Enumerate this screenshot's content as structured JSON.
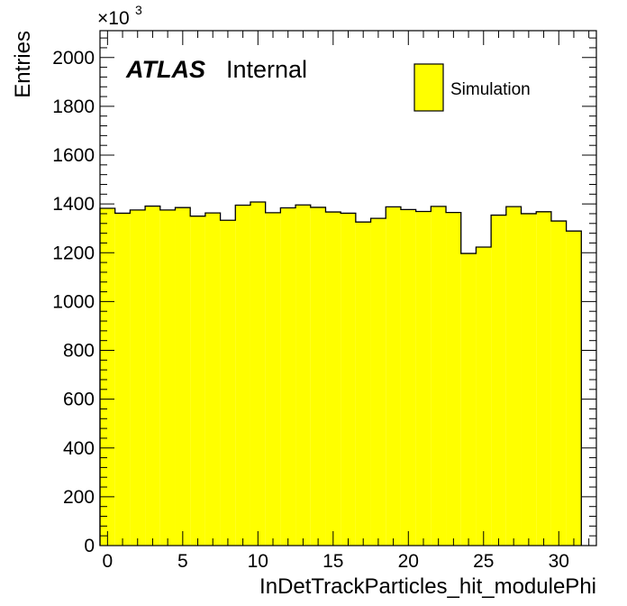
{
  "chart_data": {
    "type": "bar",
    "style": "histogram",
    "fill_color": "#ffff00",
    "line_color": "#000000",
    "xlabel": "InDetTrackParticles_hit_modulePhi",
    "ylabel": "Entries",
    "y_multiplier_base": "×10",
    "y_multiplier_exp": "3",
    "xlim": [
      -0.5,
      32.5
    ],
    "ylim": [
      0,
      2110
    ],
    "x_ticks": [
      0,
      5,
      10,
      15,
      20,
      25,
      30
    ],
    "x_tick_labels": [
      "0",
      "5",
      "10",
      "15",
      "20",
      "25",
      "30"
    ],
    "y_ticks": [
      0,
      200,
      400,
      600,
      800,
      1000,
      1200,
      1400,
      1600,
      1800,
      2000
    ],
    "y_tick_labels": [
      "0",
      "200",
      "400",
      "600",
      "800",
      "1000",
      "1200",
      "1400",
      "1600",
      "1800",
      "2000"
    ],
    "bin_edges": [
      -0.5,
      0.5,
      1.5,
      2.5,
      3.5,
      4.5,
      5.5,
      6.5,
      7.5,
      8.5,
      9.5,
      10.5,
      11.5,
      12.5,
      13.5,
      14.5,
      15.5,
      16.5,
      17.5,
      18.5,
      19.5,
      20.5,
      21.5,
      22.5,
      23.5,
      24.5,
      25.5,
      26.5,
      27.5,
      28.5,
      29.5,
      30.5,
      31.5
    ],
    "values": [
      1382,
      1362,
      1375,
      1391,
      1375,
      1385,
      1350,
      1363,
      1333,
      1395,
      1408,
      1364,
      1384,
      1396,
      1386,
      1367,
      1362,
      1326,
      1341,
      1388,
      1377,
      1369,
      1390,
      1365,
      1197,
      1223,
      1354,
      1389,
      1360,
      1368,
      1330,
      1289
    ],
    "series": [
      {
        "name": "Simulation",
        "values": []
      }
    ],
    "legend": {
      "position": "top-right",
      "label": "Simulation"
    },
    "title": "",
    "atlas_label": "ATLAS",
    "atlas_sublabel": "Internal"
  }
}
